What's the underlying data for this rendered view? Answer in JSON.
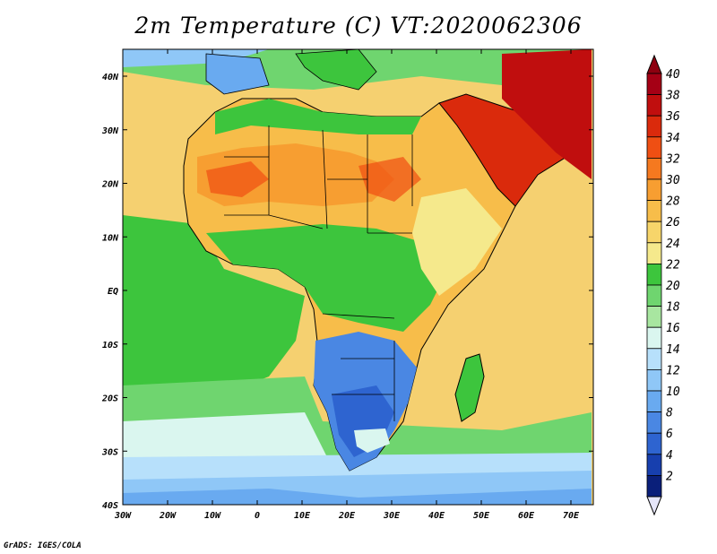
{
  "title": "2m Temperature (C) VT:2020062306",
  "credit": "GrADS: IGES/COLA",
  "lat_labels": [
    "40N",
    "30N",
    "20N",
    "10N",
    "EQ",
    "10S",
    "20S",
    "30S",
    "40S"
  ],
  "lon_labels": [
    "30W",
    "20W",
    "10W",
    "0",
    "10E",
    "20E",
    "30E",
    "40E",
    "50E",
    "60E",
    "70E"
  ],
  "colorbar": {
    "labels": [
      "40",
      "38",
      "36",
      "34",
      "32",
      "30",
      "28",
      "26",
      "24",
      "22",
      "20",
      "18",
      "16",
      "14",
      "12",
      "10",
      "8",
      "6",
      "4",
      "2"
    ],
    "colors": [
      "#a50015",
      "#c00e0e",
      "#da2a0c",
      "#ef4f13",
      "#f5791f",
      "#f79e31",
      "#f7bd4a",
      "#f7d56a",
      "#f5e98c",
      "#3dc53d",
      "#6fd56f",
      "#a8e6a0",
      "#daf6ef",
      "#b7e0fb",
      "#8fc7f7",
      "#69aaf0",
      "#4a87e3",
      "#2e64d0",
      "#173fae",
      "#0a1f7a"
    ],
    "top_arrow_color": "#8e0010",
    "bottom_arrow_color": "#e6e6fa"
  },
  "map": {
    "ocean_color": "#f5d070",
    "land_color": "#f0b14a",
    "cold_color": "#4a87e3",
    "border_color": "#000000"
  }
}
